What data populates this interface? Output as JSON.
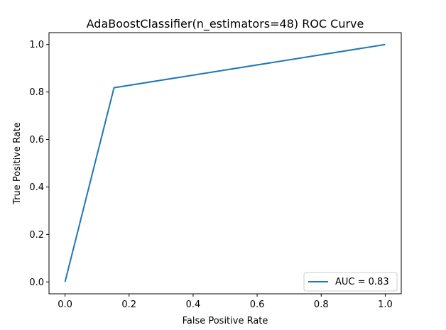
{
  "chart_data": {
    "type": "line",
    "title": "AdaBoostClassifier(n_estimators=48) ROC Curve",
    "xlabel": "False Positive Rate",
    "ylabel": "True Positive Rate",
    "xlim": [
      -0.05,
      1.05
    ],
    "ylim": [
      -0.05,
      1.05
    ],
    "xticks": [
      0.0,
      0.2,
      0.4,
      0.6,
      0.8,
      1.0
    ],
    "xtick_labels": [
      "0.0",
      "0.2",
      "0.4",
      "0.6",
      "0.8",
      "1.0"
    ],
    "yticks": [
      0.0,
      0.2,
      0.4,
      0.6,
      0.8,
      1.0
    ],
    "ytick_labels": [
      "0.0",
      "0.2",
      "0.4",
      "0.6",
      "0.8",
      "1.0"
    ],
    "grid": false,
    "legend_position": "lower-right",
    "series": [
      {
        "name": "AUC = 0.83",
        "color": "#1f77b4",
        "x": [
          0.0,
          0.153,
          1.0
        ],
        "y": [
          0.0,
          0.818,
          1.0
        ]
      }
    ]
  }
}
